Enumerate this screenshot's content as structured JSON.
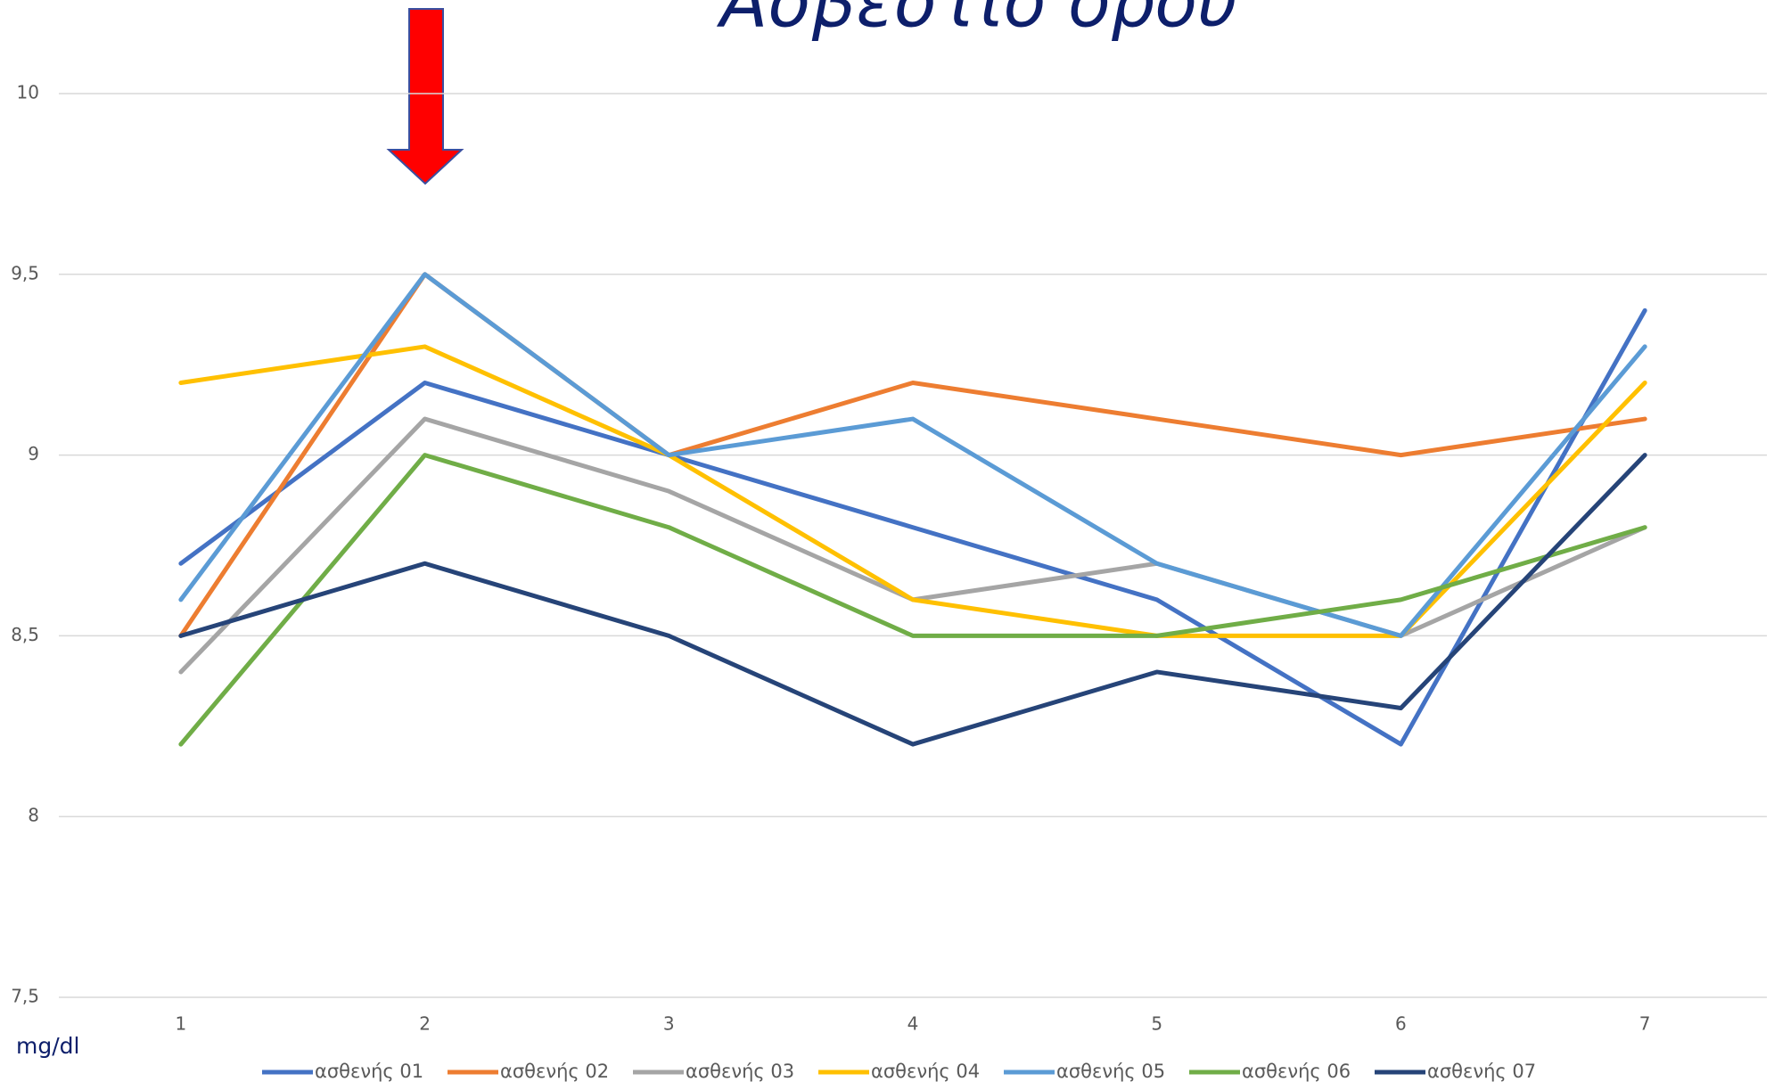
{
  "chart_data": {
    "type": "line",
    "title": "Ασβέστιο ορού",
    "ylabel": "mg/dl",
    "categories": [
      "1",
      "2",
      "3",
      "4",
      "5",
      "6",
      "7"
    ],
    "series": [
      {
        "name": "ασθενής 01",
        "color": "#4472c4",
        "values": [
          8.7,
          9.2,
          9.0,
          8.8,
          8.6,
          8.2,
          9.4
        ]
      },
      {
        "name": "ασθενής 02",
        "color": "#ed7d31",
        "values": [
          8.5,
          9.5,
          9.0,
          9.2,
          9.1,
          9.0,
          9.1
        ]
      },
      {
        "name": "ασθενής 03",
        "color": "#a5a5a5",
        "values": [
          8.4,
          9.1,
          8.9,
          8.6,
          8.7,
          8.5,
          8.8
        ]
      },
      {
        "name": "ασθενής 04",
        "color": "#ffc000",
        "values": [
          9.2,
          9.3,
          9.0,
          8.6,
          8.5,
          8.5,
          9.2
        ]
      },
      {
        "name": "ασθενής 05",
        "color": "#5b9bd5",
        "values": [
          8.6,
          9.5,
          9.0,
          9.1,
          8.7,
          8.5,
          9.3
        ]
      },
      {
        "name": "ασθενής 06",
        "color": "#70ad47",
        "values": [
          8.2,
          9.0,
          8.8,
          8.5,
          8.5,
          8.6,
          8.8
        ]
      },
      {
        "name": "ασθενής 07",
        "color": "#264478",
        "values": [
          8.5,
          8.7,
          8.5,
          8.2,
          8.4,
          8.3,
          9.0
        ]
      }
    ],
    "ylim": [
      7.5,
      10
    ],
    "yticks": [
      {
        "value": 7.5,
        "label": "7,5"
      },
      8,
      {
        "value": 8.5,
        "label": "8,5"
      },
      9,
      {
        "value": 9.5,
        "label": "9,5"
      },
      10
    ],
    "grid": true,
    "legend": "bottom"
  }
}
